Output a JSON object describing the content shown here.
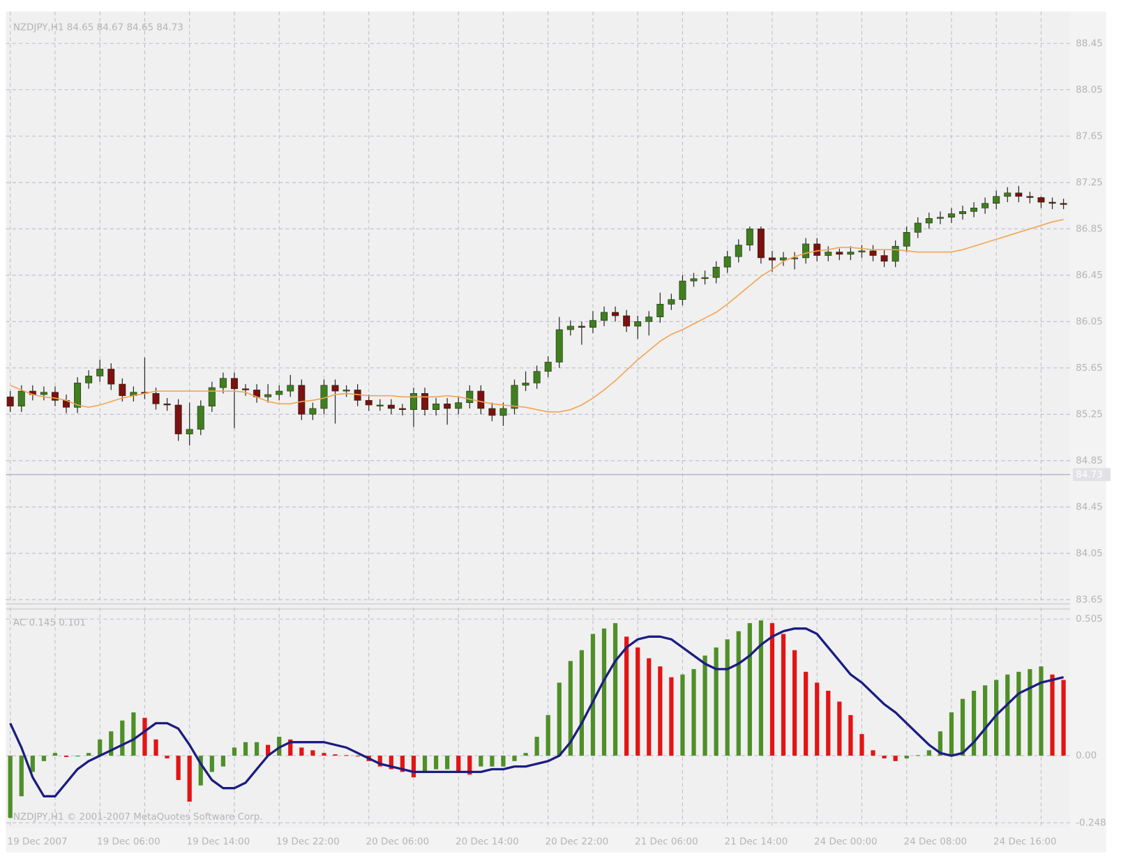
{
  "chart_data": [
    {
      "type": "candlestick",
      "title": "NZDJPY,H1 84.65 84.67 84.65 84.73",
      "open": [
        85.4,
        85.32,
        85.45,
        85.42,
        85.44,
        85.37,
        85.31,
        85.52,
        85.58,
        85.64,
        85.51,
        85.41,
        85.44,
        85.43,
        85.34,
        85.33,
        85.08,
        85.12,
        85.32,
        85.48,
        85.56,
        85.47,
        85.46,
        85.4,
        85.42,
        85.45,
        85.5,
        85.25,
        85.3,
        85.5,
        85.45,
        85.46,
        85.37,
        85.33,
        85.33,
        85.3,
        85.29,
        85.43,
        85.29,
        85.34,
        85.3,
        85.35,
        85.45,
        85.3,
        85.24,
        85.3,
        85.5,
        85.52,
        85.62,
        85.7,
        85.98,
        86.01,
        86.0,
        86.06,
        86.13,
        86.1,
        86.01,
        86.05,
        86.09,
        86.2,
        86.24,
        86.4,
        86.42,
        86.43,
        86.52,
        86.61,
        86.71,
        86.85,
        86.6,
        86.58,
        86.6,
        86.6,
        86.72,
        86.62,
        86.65,
        86.63,
        86.65,
        86.66,
        86.62,
        86.57,
        86.7,
        86.82,
        86.9,
        86.94,
        86.95,
        86.98,
        87.0,
        87.03,
        87.07,
        87.13,
        87.16,
        87.13,
        87.12,
        87.08,
        87.07
      ],
      "high": [
        85.45,
        85.5,
        85.5,
        85.49,
        85.49,
        85.42,
        85.57,
        85.63,
        85.72,
        85.69,
        85.56,
        85.49,
        85.74,
        85.48,
        85.39,
        85.38,
        85.35,
        85.37,
        85.53,
        85.61,
        85.61,
        85.51,
        85.51,
        85.51,
        85.5,
        85.59,
        85.55,
        85.35,
        85.55,
        85.55,
        85.5,
        85.51,
        85.42,
        85.38,
        85.38,
        85.34,
        85.48,
        85.48,
        85.39,
        85.39,
        85.4,
        85.5,
        85.5,
        85.35,
        85.35,
        85.55,
        85.62,
        85.67,
        85.75,
        86.09,
        86.06,
        86.05,
        86.14,
        86.18,
        86.18,
        86.15,
        86.1,
        86.14,
        86.3,
        86.29,
        86.45,
        86.47,
        86.49,
        86.57,
        86.66,
        86.76,
        86.87,
        86.87,
        86.66,
        86.65,
        86.65,
        86.77,
        86.77,
        86.7,
        86.68,
        86.7,
        86.71,
        86.71,
        86.67,
        86.75,
        86.87,
        86.95,
        86.99,
        87.0,
        87.03,
        87.05,
        87.08,
        87.12,
        87.18,
        87.21,
        87.22,
        87.17,
        87.13,
        87.12,
        87.11
      ],
      "low": [
        85.27,
        85.27,
        85.37,
        85.37,
        85.32,
        85.26,
        85.26,
        85.47,
        85.53,
        85.46,
        85.36,
        85.36,
        85.38,
        85.29,
        85.28,
        85.02,
        84.98,
        85.07,
        85.27,
        85.43,
        85.13,
        85.41,
        85.35,
        85.35,
        85.37,
        85.4,
        85.2,
        85.2,
        85.25,
        85.17,
        85.4,
        85.32,
        85.28,
        85.28,
        85.25,
        85.24,
        85.14,
        85.24,
        85.24,
        85.16,
        85.25,
        85.3,
        85.25,
        85.19,
        85.15,
        85.25,
        85.45,
        85.47,
        85.57,
        85.65,
        85.93,
        85.85,
        85.95,
        86.01,
        86.05,
        85.96,
        85.9,
        85.93,
        86.04,
        86.15,
        86.19,
        86.35,
        86.37,
        86.38,
        86.47,
        86.56,
        86.66,
        86.55,
        86.48,
        86.53,
        86.5,
        86.55,
        86.57,
        86.57,
        86.58,
        86.58,
        86.6,
        86.57,
        86.52,
        86.52,
        86.65,
        86.77,
        86.85,
        86.89,
        86.9,
        86.93,
        86.95,
        86.98,
        87.02,
        87.08,
        87.08,
        87.07,
        87.03,
        87.02,
        87.02
      ],
      "close": [
        85.32,
        85.45,
        85.42,
        85.44,
        85.37,
        85.31,
        85.52,
        85.58,
        85.64,
        85.51,
        85.41,
        85.44,
        85.43,
        85.34,
        85.33,
        85.08,
        85.12,
        85.32,
        85.48,
        85.56,
        85.47,
        85.46,
        85.4,
        85.42,
        85.45,
        85.5,
        85.25,
        85.3,
        85.5,
        85.45,
        85.46,
        85.37,
        85.33,
        85.33,
        85.3,
        85.29,
        85.43,
        85.29,
        85.34,
        85.3,
        85.35,
        85.45,
        85.3,
        85.24,
        85.3,
        85.5,
        85.52,
        85.62,
        85.7,
        85.98,
        86.01,
        86.0,
        86.06,
        86.13,
        86.1,
        86.01,
        86.05,
        86.09,
        86.2,
        86.24,
        86.4,
        86.42,
        86.43,
        86.52,
        86.61,
        86.71,
        86.85,
        86.6,
        86.58,
        86.6,
        86.6,
        86.72,
        86.62,
        86.65,
        86.63,
        86.65,
        86.66,
        86.62,
        86.57,
        86.7,
        86.82,
        86.9,
        86.94,
        86.95,
        86.98,
        87.0,
        87.03,
        87.07,
        87.13,
        87.16,
        87.13,
        87.12,
        87.08,
        87.07,
        87.06
      ],
      "up_color": "#3f7f1f",
      "down_color": "#7d1010",
      "overlay": {
        "color": "#f2a552",
        "values": [
          85.5,
          85.46,
          85.42,
          85.4,
          85.39,
          85.37,
          85.33,
          85.31,
          85.33,
          85.36,
          85.39,
          85.41,
          85.43,
          85.45,
          85.45,
          85.45,
          85.45,
          85.45,
          85.45,
          85.45,
          85.45,
          85.44,
          85.4,
          85.36,
          85.34,
          85.34,
          85.36,
          85.37,
          85.39,
          85.42,
          85.43,
          85.42,
          85.41,
          85.41,
          85.41,
          85.4,
          85.4,
          85.4,
          85.4,
          85.41,
          85.4,
          85.38,
          85.36,
          85.34,
          85.33,
          85.32,
          85.31,
          85.29,
          85.27,
          85.27,
          85.29,
          85.33,
          85.39,
          85.46,
          85.54,
          85.63,
          85.72,
          85.8,
          85.88,
          85.94,
          85.98,
          86.03,
          86.08,
          86.13,
          86.2,
          86.28,
          86.36,
          86.44,
          86.5,
          86.57,
          86.61,
          86.64,
          86.66,
          86.67,
          86.69,
          86.69,
          86.68,
          86.67,
          86.67,
          86.67,
          86.66,
          86.65,
          86.65,
          86.65,
          86.65,
          86.67,
          86.7,
          86.73,
          86.76,
          86.79,
          86.82,
          86.85,
          86.88,
          86.91,
          86.93
        ]
      },
      "current_price": 84.73,
      "ylim": [
        83.62,
        88.7
      ],
      "yticks": [
        83.65,
        84.05,
        84.45,
        84.85,
        85.25,
        85.65,
        86.05,
        86.45,
        86.85,
        87.25,
        87.65,
        88.05,
        88.45
      ],
      "grid": true
    },
    {
      "type": "bar",
      "title": "AC 0.145 0.101",
      "annotation": "NZDJPY,H1 © 2001-2007 MetaQuotes Software Corp.",
      "categories": [
        "19 Dec 2007",
        null,
        null,
        null,
        null,
        null,
        null,
        null,
        "19 Dec 06:00",
        null,
        null,
        null,
        null,
        null,
        null,
        null,
        "19 Dec 14:00",
        null,
        null,
        null,
        null,
        null,
        null,
        null,
        "19 Dec 22:00",
        null,
        null,
        null,
        null,
        null,
        null,
        null,
        "20 Dec 06:00",
        null,
        null,
        null,
        null,
        null,
        null,
        null,
        "20 Dec 14:00",
        null,
        null,
        null,
        null,
        null,
        null,
        null,
        "20 Dec 22:00",
        null,
        null,
        null,
        null,
        null,
        null,
        null,
        "21 Dec 06:00",
        null,
        null,
        null,
        null,
        null,
        null,
        null,
        "21 Dec 14:00",
        null,
        null,
        null,
        null,
        null,
        null,
        null,
        "24 Dec 00:00",
        null,
        null,
        null,
        null,
        null,
        null,
        null,
        "24 Dec 08:00",
        null,
        null,
        null,
        null,
        null,
        null,
        null,
        "24 Dec 16:00",
        null,
        null,
        null,
        null,
        null,
        null
      ],
      "values": [
        -0.23,
        -0.15,
        -0.06,
        -0.02,
        0.01,
        -0.005,
        -0.003,
        0.01,
        0.06,
        0.09,
        0.13,
        0.16,
        0.14,
        0.06,
        -0.01,
        -0.09,
        -0.17,
        -0.11,
        -0.06,
        -0.04,
        0.03,
        0.05,
        0.05,
        0.04,
        0.07,
        0.06,
        0.03,
        0.02,
        0.01,
        0.005,
        0.002,
        -0.002,
        -0.02,
        -0.04,
        -0.05,
        -0.06,
        -0.08,
        -0.06,
        -0.05,
        -0.05,
        -0.06,
        -0.07,
        -0.04,
        -0.04,
        -0.04,
        -0.02,
        0.01,
        0.07,
        0.15,
        0.27,
        0.35,
        0.39,
        0.45,
        0.47,
        0.49,
        0.44,
        0.4,
        0.36,
        0.33,
        0.29,
        0.3,
        0.32,
        0.37,
        0.4,
        0.43,
        0.46,
        0.49,
        0.5,
        0.49,
        0.45,
        0.39,
        0.31,
        0.27,
        0.24,
        0.2,
        0.15,
        0.08,
        0.02,
        -0.01,
        -0.02,
        -0.01,
        0.002,
        0.02,
        0.09,
        0.16,
        0.21,
        0.24,
        0.26,
        0.28,
        0.3,
        0.31,
        0.32,
        0.33,
        0.3,
        0.28
      ],
      "up_color": "#4f8f27",
      "down_color": "#e31414",
      "signal": {
        "color": "#1b1d82",
        "values": [
          0.12,
          0.03,
          -0.08,
          -0.15,
          -0.15,
          -0.1,
          -0.05,
          -0.02,
          0.0,
          0.02,
          0.04,
          0.06,
          0.09,
          0.12,
          0.12,
          0.1,
          0.04,
          -0.03,
          -0.09,
          -0.12,
          -0.12,
          -0.1,
          -0.05,
          0.0,
          0.03,
          0.05,
          0.05,
          0.05,
          0.05,
          0.04,
          0.03,
          0.01,
          -0.01,
          -0.03,
          -0.04,
          -0.05,
          -0.06,
          -0.06,
          -0.06,
          -0.06,
          -0.06,
          -0.06,
          -0.06,
          -0.05,
          -0.05,
          -0.04,
          -0.04,
          -0.03,
          -0.02,
          0.0,
          0.05,
          0.12,
          0.2,
          0.28,
          0.35,
          0.4,
          0.43,
          0.44,
          0.44,
          0.43,
          0.4,
          0.37,
          0.34,
          0.32,
          0.32,
          0.34,
          0.37,
          0.41,
          0.44,
          0.46,
          0.47,
          0.47,
          0.45,
          0.4,
          0.35,
          0.3,
          0.27,
          0.23,
          0.19,
          0.16,
          0.12,
          0.08,
          0.04,
          0.01,
          0.0,
          0.01,
          0.05,
          0.1,
          0.15,
          0.19,
          0.23,
          0.25,
          0.27,
          0.28,
          0.29
        ]
      },
      "ylim": [
        -0.264,
        0.537
      ],
      "yticks": [
        -0.248,
        {
          "value": 0,
          "label": "0.00"
        },
        0.505
      ],
      "grid": true
    }
  ]
}
